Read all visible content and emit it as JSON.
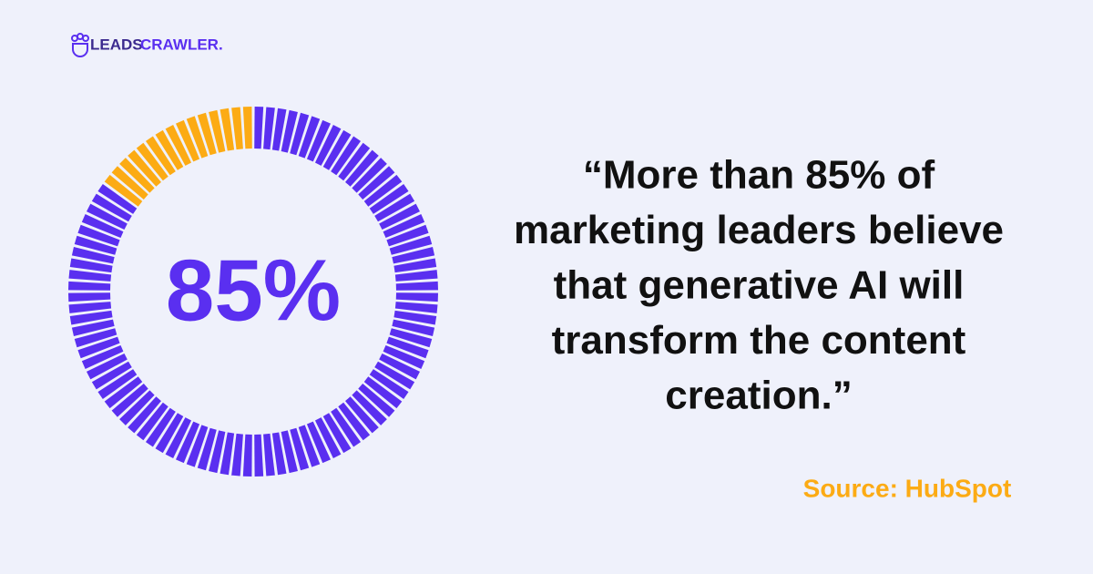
{
  "brand": {
    "first": "LEADS",
    "second": "CRAWLER."
  },
  "quote": [
    "“More than 85% of",
    "marketing leaders believe",
    "that generative AI will",
    "transform the content",
    "creation.”"
  ],
  "source": "Source: HubSpot",
  "chart_data": {
    "type": "donut",
    "values": [
      85,
      15
    ],
    "value_labels": [
      "85%",
      null
    ],
    "colors": [
      "#5a2ff0",
      "#fcab14"
    ]
  }
}
